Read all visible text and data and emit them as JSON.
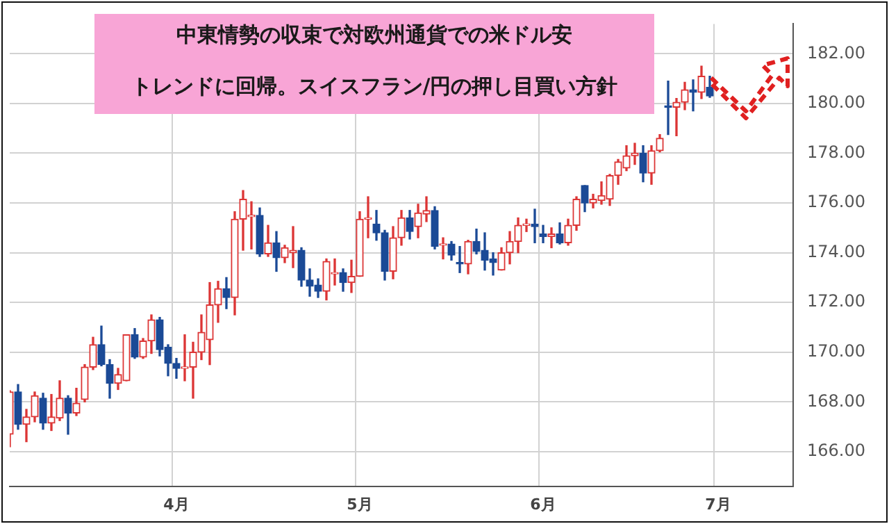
{
  "chart_data": {
    "type": "candlestick",
    "title": "中東情勢の収束で対欧州通貨での米ドル安",
    "subtitle": "トレンドに回帰。スイスフラン/円の押し目買い方針",
    "categories": [
      null,
      null,
      null,
      null,
      null,
      null,
      null,
      null,
      null,
      null,
      null,
      null,
      null,
      null,
      null,
      null,
      null,
      null,
      null,
      null,
      "4月",
      null,
      null,
      null,
      null,
      null,
      null,
      null,
      null,
      null,
      null,
      null,
      null,
      null,
      null,
      null,
      null,
      null,
      null,
      null,
      null,
      null,
      "5月",
      null,
      null,
      null,
      null,
      null,
      null,
      null,
      null,
      null,
      null,
      null,
      null,
      null,
      null,
      null,
      null,
      null,
      null,
      null,
      null,
      null,
      "6月",
      null,
      null,
      null,
      null,
      null,
      null,
      null,
      null,
      null,
      null,
      null,
      null,
      null,
      null,
      null,
      null,
      null,
      null,
      null,
      null,
      "7月",
      null,
      null,
      null,
      null,
      null,
      null,
      null,
      null,
      null
    ],
    "ohlc": [
      [
        166.7,
        168.45,
        166.2,
        168.4
      ],
      [
        168.4,
        168.7,
        166.9,
        167.1
      ],
      [
        167.1,
        167.7,
        166.4,
        167.4
      ],
      [
        167.4,
        168.4,
        167.2,
        168.25
      ],
      [
        168.15,
        168.35,
        166.9,
        167.15
      ],
      [
        167.15,
        168.3,
        166.85,
        167.4
      ],
      [
        167.35,
        168.85,
        167.25,
        168.15
      ],
      [
        168.15,
        168.25,
        166.7,
        167.55
      ],
      [
        167.55,
        168.55,
        167.45,
        167.95
      ],
      [
        168.1,
        169.5,
        168.0,
        169.4
      ],
      [
        169.4,
        170.6,
        169.3,
        170.3
      ],
      [
        170.3,
        171.05,
        169.45,
        169.5
      ],
      [
        169.5,
        169.7,
        168.15,
        168.75
      ],
      [
        168.75,
        169.35,
        168.5,
        169.1
      ],
      [
        168.85,
        170.7,
        168.85,
        170.7
      ],
      [
        170.7,
        170.95,
        169.75,
        169.8
      ],
      [
        169.8,
        170.55,
        169.75,
        170.45
      ],
      [
        170.45,
        171.5,
        169.95,
        171.3
      ],
      [
        171.3,
        171.4,
        169.85,
        170.1
      ],
      [
        170.2,
        170.3,
        169.05,
        169.55
      ],
      [
        169.55,
        169.75,
        168.95,
        169.35
      ],
      [
        169.35,
        170.7,
        168.85,
        169.4
      ],
      [
        169.4,
        170.4,
        168.15,
        170.0
      ],
      [
        170.0,
        171.5,
        169.7,
        170.8
      ],
      [
        170.5,
        172.8,
        169.5,
        171.9
      ],
      [
        171.9,
        172.85,
        171.2,
        172.55
      ],
      [
        172.55,
        173.0,
        171.75,
        172.2
      ],
      [
        172.2,
        175.65,
        171.5,
        175.35
      ],
      [
        175.35,
        176.5,
        174.1,
        176.15
      ],
      [
        175.45,
        176.05,
        174.15,
        175.5
      ],
      [
        175.5,
        175.8,
        173.85,
        173.95
      ],
      [
        173.95,
        175.1,
        173.85,
        174.4
      ],
      [
        174.4,
        174.85,
        173.25,
        173.8
      ],
      [
        173.8,
        174.3,
        173.6,
        174.2
      ],
      [
        174.0,
        175.05,
        173.4,
        174.1
      ],
      [
        174.1,
        174.2,
        172.65,
        172.9
      ],
      [
        172.9,
        173.35,
        172.25,
        172.65
      ],
      [
        172.7,
        172.95,
        172.2,
        172.45
      ],
      [
        172.45,
        173.75,
        172.1,
        173.65
      ],
      [
        173.15,
        173.75,
        172.7,
        173.2
      ],
      [
        173.2,
        173.35,
        172.45,
        172.8
      ],
      [
        172.8,
        173.7,
        172.4,
        173.05
      ],
      [
        173.05,
        175.65,
        173.05,
        175.35
      ],
      [
        175.35,
        176.25,
        174.6,
        175.4
      ],
      [
        175.15,
        175.7,
        174.5,
        174.8
      ],
      [
        174.8,
        174.9,
        172.9,
        173.25
      ],
      [
        173.25,
        175.05,
        172.95,
        174.6
      ],
      [
        174.6,
        175.7,
        174.3,
        175.4
      ],
      [
        175.4,
        175.7,
        174.55,
        174.85
      ],
      [
        175.05,
        175.95,
        174.6,
        175.6
      ],
      [
        175.55,
        176.25,
        175.25,
        175.7
      ],
      [
        175.7,
        175.85,
        174.15,
        174.25
      ],
      [
        174.3,
        174.6,
        173.75,
        174.35
      ],
      [
        174.35,
        174.45,
        173.7,
        173.9
      ],
      [
        173.6,
        174.25,
        173.2,
        173.55
      ],
      [
        173.55,
        174.5,
        173.15,
        174.45
      ],
      [
        174.45,
        174.95,
        173.95,
        174.05
      ],
      [
        174.1,
        174.8,
        173.3,
        173.7
      ],
      [
        173.75,
        174.0,
        173.1,
        173.6
      ],
      [
        173.3,
        174.2,
        173.3,
        174.0
      ],
      [
        174.0,
        174.85,
        173.55,
        174.45
      ],
      [
        174.45,
        175.4,
        174.0,
        175.1
      ],
      [
        175.1,
        175.35,
        174.85,
        175.15
      ],
      [
        175.15,
        175.75,
        174.4,
        175.05
      ],
      [
        174.75,
        175.1,
        174.4,
        174.65
      ],
      [
        174.65,
        175.0,
        174.2,
        174.75
      ],
      [
        174.75,
        175.2,
        174.35,
        174.4
      ],
      [
        174.4,
        175.35,
        174.3,
        175.1
      ],
      [
        175.1,
        176.25,
        174.9,
        176.15
      ],
      [
        176.7,
        176.7,
        175.65,
        176.0
      ],
      [
        176.0,
        176.35,
        175.8,
        176.15
      ],
      [
        176.1,
        176.85,
        175.95,
        176.3
      ],
      [
        176.15,
        177.15,
        175.9,
        177.1
      ],
      [
        177.1,
        177.75,
        176.75,
        177.65
      ],
      [
        177.4,
        178.3,
        177.3,
        177.9
      ],
      [
        177.9,
        178.4,
        177.55,
        178.0
      ],
      [
        178.0,
        178.3,
        176.85,
        177.2
      ],
      [
        177.2,
        178.3,
        176.75,
        178.1
      ],
      [
        178.1,
        178.75,
        178.05,
        178.6
      ],
      [
        179.9,
        180.9,
        178.75,
        179.85
      ],
      [
        179.85,
        180.2,
        178.7,
        180.05
      ],
      [
        180.05,
        180.85,
        179.75,
        180.55
      ],
      [
        180.55,
        180.95,
        179.7,
        180.45
      ],
      [
        180.45,
        181.5,
        180.2,
        181.1
      ],
      [
        180.65,
        181.1,
        180.25,
        180.3
      ],
      null,
      null,
      null,
      null,
      null,
      null,
      null,
      null,
      null,
      null
    ],
    "colors": [
      "#dc3535",
      "#1b4a96",
      "#dc3535",
      "#dc3535",
      "#1b4a96",
      "#dc3535",
      "#dc3535",
      "#1b4a96",
      "#dc3535",
      "#dc3535",
      "#dc3535",
      "#1b4a96",
      "#1b4a96",
      "#dc3535",
      "#dc3535",
      "#1b4a96",
      "#dc3535",
      "#dc3535",
      "#1b4a96",
      "#1b4a96",
      "#1b4a96",
      "#dc3535",
      "#dc3535",
      "#dc3535",
      "#dc3535",
      "#dc3535",
      "#1b4a96",
      "#dc3535",
      "#dc3535",
      "#dc3535",
      "#1b4a96",
      "#dc3535",
      "#1b4a96",
      "#dc3535",
      "#dc3535",
      "#1b4a96",
      "#1b4a96",
      "#1b4a96",
      "#dc3535",
      "#dc3535",
      "#1b4a96",
      "#dc3535",
      "#dc3535",
      "#dc3535",
      "#1b4a96",
      "#1b4a96",
      "#dc3535",
      "#dc3535",
      "#1b4a96",
      "#dc3535",
      "#dc3535",
      "#1b4a96",
      "#dc3535",
      "#1b4a96",
      "#1b4a96",
      "#dc3535",
      "#1b4a96",
      "#1b4a96",
      "#1b4a96",
      "#dc3535",
      "#dc3535",
      "#dc3535",
      "#dc3535",
      "#1b4a96",
      "#1b4a96",
      "#dc3535",
      "#1b4a96",
      "#dc3535",
      "#dc3535",
      "#1b4a96",
      "#dc3535",
      "#dc3535",
      "#dc3535",
      "#dc3535",
      "#dc3535",
      "#dc3535",
      "#1b4a96",
      "#dc3535",
      "#dc3535",
      "#1b4a96",
      "#dc3535",
      "#dc3535",
      "#1b4a96",
      "#dc3535",
      "#1b4a96",
      null,
      null,
      null,
      null,
      null,
      null,
      null,
      null,
      null,
      null
    ],
    "ylim": [
      164.6,
      183.2
    ],
    "yticks": [
      {
        "value": 166,
        "label": "166.00"
      },
      {
        "value": 168,
        "label": "168.00"
      },
      {
        "value": 170,
        "label": "170.00"
      },
      {
        "value": 172,
        "label": "172.00"
      },
      {
        "value": 174,
        "label": "174.00"
      },
      {
        "value": 176,
        "label": "176.00"
      },
      {
        "value": 178,
        "label": "178.00"
      },
      {
        "value": 180,
        "label": "180.00"
      },
      {
        "value": 182,
        "label": "182.00"
      }
    ],
    "grid": true,
    "legend": false
  }
}
